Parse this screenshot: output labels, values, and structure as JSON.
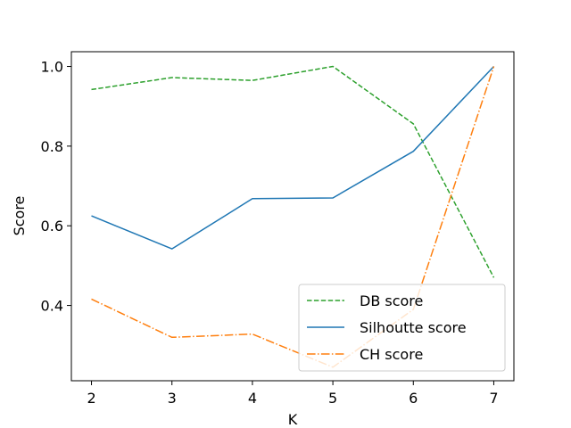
{
  "chart_data": {
    "type": "line",
    "title": "",
    "xlabel": "K",
    "ylabel": "Score",
    "x": [
      2,
      3,
      4,
      5,
      6,
      7
    ],
    "xticks": [
      2,
      3,
      4,
      5,
      6,
      7
    ],
    "yticks": [
      0.4,
      0.6,
      0.8,
      1.0
    ],
    "ytick_labels": [
      "0.4",
      "0.6",
      "0.8",
      "1.0"
    ],
    "xlim": [
      1.75,
      7.25
    ],
    "ylim": [
      0.211,
      1.037
    ],
    "grid": false,
    "legend_position": "lower-right",
    "series": [
      {
        "name": "DB score",
        "values": [
          0.942,
          0.972,
          0.965,
          1.0,
          0.856,
          0.47
        ],
        "color": "#2ca02c",
        "style": "dashed"
      },
      {
        "name": "Silhoutte score",
        "values": [
          0.625,
          0.542,
          0.668,
          0.67,
          0.787,
          1.0
        ],
        "color": "#1f77b4",
        "style": "solid"
      },
      {
        "name": "CH score",
        "values": [
          0.416,
          0.32,
          0.328,
          0.245,
          0.39,
          1.0
        ],
        "color": "#ff7f0e",
        "style": "dashdot"
      }
    ]
  }
}
